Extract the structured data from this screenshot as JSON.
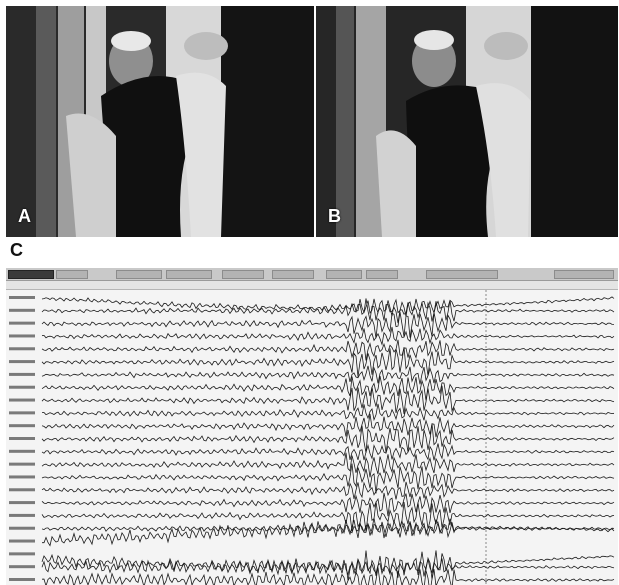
{
  "panels": {
    "a": {
      "label": "A"
    },
    "b": {
      "label": "B"
    }
  },
  "section_c": {
    "label": "C"
  },
  "eeg": {
    "channel_count": 23,
    "seizure_onset_fraction": 0.53,
    "colors": {
      "trace": "#1a1a1a",
      "background": "#f4f4f4",
      "marker": "#888888"
    }
  }
}
